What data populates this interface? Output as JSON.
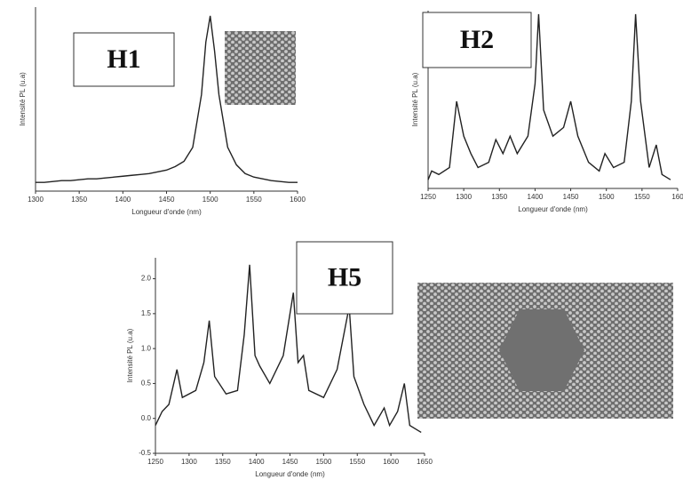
{
  "chart_data": [
    {
      "type": "line",
      "title": "H1",
      "x_label": "Longueur d'onde (nm)",
      "y_label": "Intensité PL (u.a)",
      "xlim": [
        1300,
        1600
      ],
      "xticks": [
        1300,
        1350,
        1400,
        1450,
        1500,
        1550,
        1600
      ],
      "ylim": [
        0,
        1.05
      ],
      "series": [
        {
          "color": "#222222",
          "x": [
            1300,
            1310,
            1320,
            1330,
            1340,
            1350,
            1360,
            1370,
            1380,
            1390,
            1400,
            1410,
            1420,
            1430,
            1440,
            1450,
            1460,
            1470,
            1480,
            1490,
            1495,
            1500,
            1505,
            1510,
            1520,
            1530,
            1540,
            1550,
            1560,
            1570,
            1580,
            1590,
            1600
          ],
          "values": [
            0.05,
            0.05,
            0.055,
            0.06,
            0.06,
            0.065,
            0.07,
            0.07,
            0.075,
            0.08,
            0.085,
            0.09,
            0.095,
            0.1,
            0.11,
            0.12,
            0.14,
            0.17,
            0.25,
            0.55,
            0.85,
            1.0,
            0.8,
            0.55,
            0.25,
            0.15,
            0.1,
            0.08,
            0.07,
            0.06,
            0.055,
            0.05,
            0.05
          ]
        }
      ]
    },
    {
      "type": "line",
      "title": "H2",
      "x_label": "Longueur d'onde (nm)",
      "y_label": "Intensité PL (u.a)",
      "xlim": [
        1250,
        1600
      ],
      "xticks": [
        1250,
        1300,
        1350,
        1400,
        1450,
        1500,
        1550,
        {
          "value": 1600,
          "label": "160"
        }
      ],
      "ylim": [
        0,
        1.02
      ],
      "series": [
        {
          "color": "#222222",
          "x": [
            1250,
            1255,
            1265,
            1280,
            1290,
            1300,
            1310,
            1320,
            1335,
            1345,
            1355,
            1365,
            1375,
            1390,
            1400,
            1405,
            1412,
            1425,
            1440,
            1450,
            1460,
            1475,
            1490,
            1498,
            1510,
            1525,
            1535,
            1541,
            1548,
            1560,
            1570,
            1578,
            1590
          ],
          "values": [
            0.05,
            0.1,
            0.08,
            0.12,
            0.5,
            0.3,
            0.2,
            0.12,
            0.15,
            0.28,
            0.2,
            0.3,
            0.2,
            0.3,
            0.6,
            1.0,
            0.45,
            0.3,
            0.35,
            0.5,
            0.3,
            0.15,
            0.1,
            0.2,
            0.12,
            0.15,
            0.5,
            1.0,
            0.5,
            0.12,
            0.25,
            0.08,
            0.05
          ]
        }
      ]
    },
    {
      "type": "line",
      "title": "H5",
      "x_label": "Longueur d'onde (nm)",
      "y_label": "Intensité PL (u.a)",
      "xlim": [
        1250,
        1650
      ],
      "xticks": [
        1250,
        1300,
        1350,
        1400,
        1450,
        1500,
        1550,
        1600,
        1650
      ],
      "ylim": [
        -0.5,
        2.3
      ],
      "yticks": [
        {
          "value": -0.5,
          "label": "-0.5"
        },
        {
          "value": 0,
          "label": "0.0"
        },
        0.5,
        {
          "value": 1,
          "label": "1.0"
        },
        1.5,
        {
          "value": 2,
          "label": "2.0"
        }
      ],
      "series": [
        {
          "color": "#222222",
          "x": [
            1250,
            1260,
            1270,
            1282,
            1290,
            1310,
            1322,
            1330,
            1338,
            1355,
            1372,
            1382,
            1390,
            1398,
            1405,
            1420,
            1440,
            1455,
            1462,
            1470,
            1478,
            1500,
            1520,
            1538,
            1545,
            1560,
            1575,
            1590,
            1598,
            1610,
            1620,
            1628,
            1645
          ],
          "values": [
            -0.1,
            0.1,
            0.2,
            0.7,
            0.3,
            0.4,
            0.8,
            1.4,
            0.6,
            0.35,
            0.4,
            1.2,
            2.2,
            0.9,
            0.75,
            0.5,
            0.9,
            1.8,
            0.8,
            0.9,
            0.4,
            0.3,
            0.7,
            1.6,
            0.6,
            0.2,
            -0.1,
            0.15,
            -0.1,
            0.1,
            0.5,
            -0.1,
            -0.2
          ]
        }
      ]
    }
  ]
}
